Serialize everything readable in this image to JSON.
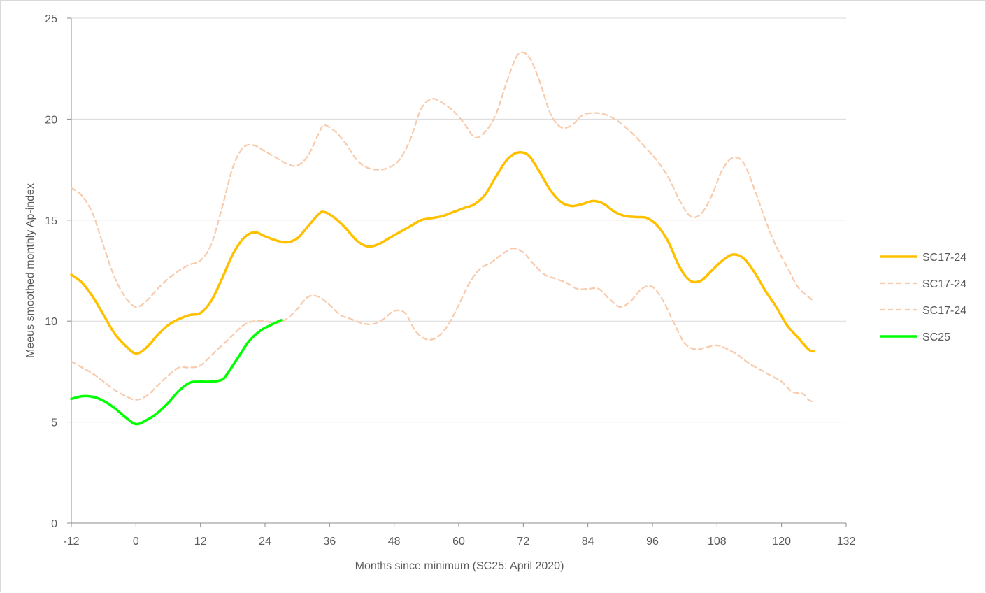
{
  "chart_data": {
    "type": "line",
    "title": "",
    "xlabel": "Months since minimum (SC25: April 2020)",
    "ylabel": "Meeus smoothed monthly Ap-index",
    "xlim": [
      -12,
      132
    ],
    "ylim": [
      0,
      25
    ],
    "x_ticks": [
      -12,
      0,
      12,
      24,
      36,
      48,
      60,
      72,
      84,
      96,
      108,
      120,
      132
    ],
    "y_ticks": [
      0,
      5,
      10,
      15,
      20,
      25
    ],
    "grid": "horizontal",
    "legend_position": "right",
    "series": [
      {
        "name": "SC17-24",
        "color": "#FFC000",
        "style": "solid",
        "points": [
          [
            -12,
            12.3
          ],
          [
            -10,
            11.9
          ],
          [
            -8,
            11.2
          ],
          [
            -6,
            10.3
          ],
          [
            -4,
            9.4
          ],
          [
            -2,
            8.8
          ],
          [
            0,
            8.4
          ],
          [
            2,
            8.7
          ],
          [
            4,
            9.3
          ],
          [
            6,
            9.8
          ],
          [
            8,
            10.1
          ],
          [
            10,
            10.3
          ],
          [
            12,
            10.4
          ],
          [
            14,
            11.0
          ],
          [
            16,
            12.1
          ],
          [
            18,
            13.3
          ],
          [
            20,
            14.1
          ],
          [
            22,
            14.4
          ],
          [
            24,
            14.2
          ],
          [
            26,
            14.0
          ],
          [
            28,
            13.9
          ],
          [
            30,
            14.1
          ],
          [
            32,
            14.7
          ],
          [
            34,
            15.3
          ],
          [
            35,
            15.4
          ],
          [
            37,
            15.1
          ],
          [
            39,
            14.6
          ],
          [
            41,
            14.0
          ],
          [
            43,
            13.7
          ],
          [
            45,
            13.8
          ],
          [
            47,
            14.1
          ],
          [
            49,
            14.4
          ],
          [
            51,
            14.7
          ],
          [
            53,
            15.0
          ],
          [
            55,
            15.1
          ],
          [
            57,
            15.2
          ],
          [
            59,
            15.4
          ],
          [
            61,
            15.6
          ],
          [
            63,
            15.8
          ],
          [
            65,
            16.3
          ],
          [
            67,
            17.2
          ],
          [
            69,
            18.0
          ],
          [
            71,
            18.35
          ],
          [
            73,
            18.2
          ],
          [
            75,
            17.4
          ],
          [
            77,
            16.5
          ],
          [
            79,
            15.9
          ],
          [
            81,
            15.7
          ],
          [
            83,
            15.8
          ],
          [
            85,
            15.95
          ],
          [
            87,
            15.8
          ],
          [
            89,
            15.4
          ],
          [
            91,
            15.2
          ],
          [
            93,
            15.15
          ],
          [
            95,
            15.1
          ],
          [
            97,
            14.7
          ],
          [
            99,
            13.9
          ],
          [
            101,
            12.7
          ],
          [
            103,
            12.0
          ],
          [
            105,
            12.0
          ],
          [
            107,
            12.5
          ],
          [
            109,
            13.0
          ],
          [
            111,
            13.3
          ],
          [
            113,
            13.1
          ],
          [
            115,
            12.4
          ],
          [
            117,
            11.5
          ],
          [
            119,
            10.7
          ],
          [
            121,
            9.8
          ],
          [
            123,
            9.2
          ],
          [
            125,
            8.6
          ],
          [
            126,
            8.5
          ]
        ]
      },
      {
        "name": "SC17-24",
        "color": "#F8CBAD",
        "style": "dashed",
        "points": [
          [
            -12,
            16.6
          ],
          [
            -10,
            16.2
          ],
          [
            -8,
            15.3
          ],
          [
            -6,
            13.7
          ],
          [
            -4,
            12.2
          ],
          [
            -2,
            11.2
          ],
          [
            0,
            10.7
          ],
          [
            2,
            11.0
          ],
          [
            4,
            11.6
          ],
          [
            6,
            12.1
          ],
          [
            8,
            12.5
          ],
          [
            10,
            12.8
          ],
          [
            12,
            13.0
          ],
          [
            14,
            13.8
          ],
          [
            16,
            15.6
          ],
          [
            18,
            17.6
          ],
          [
            20,
            18.6
          ],
          [
            22,
            18.7
          ],
          [
            24,
            18.4
          ],
          [
            26,
            18.1
          ],
          [
            28,
            17.8
          ],
          [
            30,
            17.7
          ],
          [
            32,
            18.2
          ],
          [
            34,
            19.3
          ],
          [
            35,
            19.7
          ],
          [
            37,
            19.4
          ],
          [
            39,
            18.8
          ],
          [
            41,
            18.0
          ],
          [
            43,
            17.6
          ],
          [
            45,
            17.5
          ],
          [
            47,
            17.6
          ],
          [
            49,
            18.0
          ],
          [
            51,
            19.0
          ],
          [
            53,
            20.5
          ],
          [
            55,
            21.0
          ],
          [
            57,
            20.8
          ],
          [
            59,
            20.4
          ],
          [
            61,
            19.8
          ],
          [
            63,
            19.1
          ],
          [
            65,
            19.4
          ],
          [
            67,
            20.3
          ],
          [
            69,
            21.9
          ],
          [
            71,
            23.2
          ],
          [
            73,
            23.1
          ],
          [
            75,
            21.9
          ],
          [
            77,
            20.3
          ],
          [
            79,
            19.6
          ],
          [
            81,
            19.7
          ],
          [
            83,
            20.2
          ],
          [
            85,
            20.3
          ],
          [
            87,
            20.25
          ],
          [
            89,
            20.0
          ],
          [
            91,
            19.6
          ],
          [
            93,
            19.1
          ],
          [
            95,
            18.5
          ],
          [
            97,
            17.9
          ],
          [
            99,
            17.1
          ],
          [
            101,
            16.0
          ],
          [
            103,
            15.2
          ],
          [
            105,
            15.3
          ],
          [
            107,
            16.2
          ],
          [
            109,
            17.5
          ],
          [
            111,
            18.1
          ],
          [
            113,
            17.8
          ],
          [
            115,
            16.5
          ],
          [
            117,
            15.0
          ],
          [
            119,
            13.7
          ],
          [
            121,
            12.7
          ],
          [
            123,
            11.7
          ],
          [
            125,
            11.2
          ],
          [
            126,
            11.0
          ]
        ]
      },
      {
        "name": "SC17-24",
        "color": "#F8CBAD",
        "style": "dashed",
        "points": [
          [
            -12,
            8.0
          ],
          [
            -10,
            7.7
          ],
          [
            -8,
            7.4
          ],
          [
            -6,
            7.0
          ],
          [
            -4,
            6.6
          ],
          [
            -2,
            6.3
          ],
          [
            0,
            6.1
          ],
          [
            2,
            6.3
          ],
          [
            4,
            6.8
          ],
          [
            6,
            7.3
          ],
          [
            8,
            7.7
          ],
          [
            10,
            7.7
          ],
          [
            12,
            7.8
          ],
          [
            14,
            8.3
          ],
          [
            16,
            8.8
          ],
          [
            18,
            9.3
          ],
          [
            20,
            9.8
          ],
          [
            22,
            10.0
          ],
          [
            24,
            10.0
          ],
          [
            26,
            9.9
          ],
          [
            28,
            10.1
          ],
          [
            30,
            10.6
          ],
          [
            32,
            11.2
          ],
          [
            34,
            11.2
          ],
          [
            36,
            10.8
          ],
          [
            38,
            10.3
          ],
          [
            40,
            10.1
          ],
          [
            42,
            9.9
          ],
          [
            44,
            9.85
          ],
          [
            46,
            10.1
          ],
          [
            48,
            10.5
          ],
          [
            50,
            10.4
          ],
          [
            52,
            9.5
          ],
          [
            54,
            9.1
          ],
          [
            56,
            9.2
          ],
          [
            58,
            9.8
          ],
          [
            60,
            10.8
          ],
          [
            62,
            11.9
          ],
          [
            64,
            12.6
          ],
          [
            66,
            12.9
          ],
          [
            68,
            13.3
          ],
          [
            70,
            13.6
          ],
          [
            72,
            13.4
          ],
          [
            74,
            12.8
          ],
          [
            76,
            12.3
          ],
          [
            78,
            12.1
          ],
          [
            80,
            11.9
          ],
          [
            82,
            11.6
          ],
          [
            84,
            11.6
          ],
          [
            86,
            11.6
          ],
          [
            88,
            11.1
          ],
          [
            90,
            10.7
          ],
          [
            92,
            11.0
          ],
          [
            94,
            11.6
          ],
          [
            96,
            11.7
          ],
          [
            98,
            11.0
          ],
          [
            100,
            9.9
          ],
          [
            102,
            8.9
          ],
          [
            104,
            8.6
          ],
          [
            106,
            8.7
          ],
          [
            108,
            8.8
          ],
          [
            110,
            8.6
          ],
          [
            112,
            8.3
          ],
          [
            114,
            7.9
          ],
          [
            116,
            7.6
          ],
          [
            118,
            7.3
          ],
          [
            120,
            7.0
          ],
          [
            122,
            6.5
          ],
          [
            124,
            6.4
          ],
          [
            125,
            6.1
          ],
          [
            126,
            6.0
          ]
        ]
      },
      {
        "name": "SC25",
        "color": "#00FF00",
        "style": "solid",
        "points": [
          [
            -12,
            6.15
          ],
          [
            -10,
            6.28
          ],
          [
            -8,
            6.25
          ],
          [
            -6,
            6.05
          ],
          [
            -4,
            5.7
          ],
          [
            -2,
            5.25
          ],
          [
            0,
            4.9
          ],
          [
            2,
            5.1
          ],
          [
            4,
            5.45
          ],
          [
            6,
            5.95
          ],
          [
            8,
            6.55
          ],
          [
            10,
            6.95
          ],
          [
            12,
            7.0
          ],
          [
            14,
            7.0
          ],
          [
            16,
            7.1
          ],
          [
            17,
            7.4
          ],
          [
            19,
            8.2
          ],
          [
            21,
            9.0
          ],
          [
            23,
            9.5
          ],
          [
            25,
            9.8
          ],
          [
            27,
            10.05
          ]
        ]
      }
    ]
  }
}
